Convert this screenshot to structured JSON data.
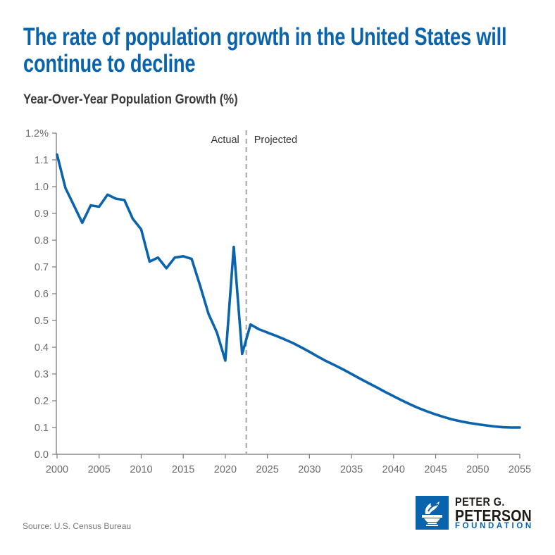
{
  "title": "The rate of population growth in the United States will continue to decline",
  "title_lines": [
    "The rate of population growth in the United States will",
    "continue to decline"
  ],
  "subtitle": "Year-Over-Year Population Growth (%)",
  "source": "Source: U.S. Census Bureau",
  "logo": {
    "line1": "PETER G.",
    "line2": "PETERSON",
    "line3": "FOUNDATION",
    "icon": "torch-icon"
  },
  "colors": {
    "brand_blue": "#0a64ad",
    "line": "#0a64ad",
    "divider": "#b5b5b5",
    "axis": "#7a7a7a"
  },
  "chart_data": {
    "type": "line",
    "title": "The rate of population growth in the United States will continue to decline",
    "subtitle": "Year-Over-Year Population Growth (%)",
    "xlabel": "",
    "ylabel": "Year-Over-Year Population Growth (%)",
    "xlim": [
      2000,
      2055
    ],
    "ylim": [
      0,
      1.2
    ],
    "x_ticks": [
      2000,
      2005,
      2010,
      2015,
      2020,
      2025,
      2030,
      2035,
      2040,
      2045,
      2050,
      2055
    ],
    "x_tick_labels": [
      "2000",
      "2005",
      "2010",
      "2015",
      "2020",
      "2025",
      "2030",
      "2035",
      "2040",
      "2045",
      "2050",
      "2055"
    ],
    "y_ticks": [
      0,
      0.1,
      0.2,
      0.3,
      0.4,
      0.5,
      0.6,
      0.7,
      0.8,
      0.9,
      1.0,
      1.1,
      1.2
    ],
    "y_tick_labels": [
      "0.0",
      "0.1",
      "0.2",
      "0.3",
      "0.4",
      "0.5",
      "0.6",
      "0.7",
      "0.8",
      "0.9",
      "1.0",
      "1.1",
      "1.2%"
    ],
    "grid": false,
    "legend": "none",
    "divider": {
      "x": 2022.5,
      "left_label": "Actual",
      "right_label": "Projected"
    },
    "series": [
      {
        "name": "Year-over-year population growth",
        "x": [
          2000,
          2001,
          2002,
          2003,
          2004,
          2005,
          2006,
          2007,
          2008,
          2009,
          2010,
          2011,
          2012,
          2013,
          2014,
          2015,
          2016,
          2017,
          2018,
          2019,
          2020,
          2021,
          2022,
          2023,
          2024,
          2025,
          2026,
          2027,
          2028,
          2029,
          2030,
          2031,
          2032,
          2033,
          2034,
          2035,
          2036,
          2037,
          2038,
          2039,
          2040,
          2041,
          2042,
          2043,
          2044,
          2045,
          2046,
          2047,
          2048,
          2049,
          2050,
          2051,
          2052,
          2053,
          2054,
          2055
        ],
        "values": [
          1.12,
          0.995,
          0.93,
          0.865,
          0.93,
          0.925,
          0.97,
          0.955,
          0.95,
          0.88,
          0.84,
          0.72,
          0.735,
          0.695,
          0.735,
          0.74,
          0.73,
          0.63,
          0.525,
          0.455,
          0.35,
          0.775,
          0.375,
          0.485,
          0.467,
          0.455,
          0.443,
          0.43,
          0.416,
          0.4,
          0.383,
          0.365,
          0.348,
          0.333,
          0.317,
          0.3,
          0.283,
          0.266,
          0.25,
          0.233,
          0.217,
          0.201,
          0.186,
          0.172,
          0.16,
          0.149,
          0.139,
          0.13,
          0.123,
          0.117,
          0.112,
          0.108,
          0.104,
          0.101,
          0.1,
          0.1
        ]
      }
    ]
  }
}
